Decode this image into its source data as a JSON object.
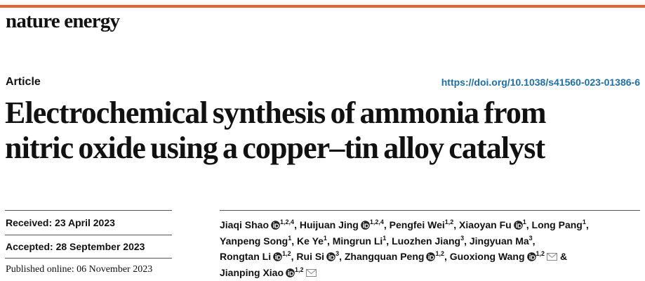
{
  "journal": "nature energy",
  "article_type": "Article",
  "doi": "https://doi.org/10.1038/s41560-023-01386-6",
  "title": [
    "Electrochemical synthesis of ammonia from",
    "nitric oxide using a copper–tin alloy catalyst"
  ],
  "dates": {
    "received": "Received: 23 April 2023",
    "accepted": "Accepted: 28 September 2023",
    "published": "Published online: 06 November 2023"
  },
  "authors": {
    "separator": ",",
    "conjunction": "&",
    "lines": [
      [
        {
          "name": "Jiaqi Shao",
          "affil": "1,2,4",
          "orcid": true,
          "corresponding": false
        },
        {
          "name": "Huijuan Jing",
          "affil": "1,2,4",
          "orcid": true,
          "corresponding": false
        },
        {
          "name": "Pengfei Wei",
          "affil": "1,2",
          "orcid": false,
          "corresponding": false
        },
        {
          "name": "Xiaoyan Fu",
          "affil": "1",
          "orcid": true,
          "corresponding": false
        },
        {
          "name": "Long Pang",
          "affil": "1",
          "orcid": false,
          "corresponding": false
        }
      ],
      [
        {
          "name": "Yanpeng Song",
          "affil": "1",
          "orcid": false,
          "corresponding": false
        },
        {
          "name": "Ke Ye",
          "affil": "1",
          "orcid": false,
          "corresponding": false
        },
        {
          "name": "Mingrun Li",
          "affil": "1",
          "orcid": false,
          "corresponding": false
        },
        {
          "name": "Luozhen Jiang",
          "affil": "3",
          "orcid": false,
          "corresponding": false
        },
        {
          "name": "Jingyuan Ma",
          "affil": "3",
          "orcid": false,
          "corresponding": false
        }
      ],
      [
        {
          "name": "Rongtan Li",
          "affil": "1,2",
          "orcid": true,
          "corresponding": false
        },
        {
          "name": "Rui Si",
          "affil": "3",
          "orcid": true,
          "corresponding": false
        },
        {
          "name": "Zhangquan Peng",
          "affil": "1,2",
          "orcid": true,
          "corresponding": false
        },
        {
          "name": "Guoxiong Wang",
          "affil": "1,2",
          "orcid": true,
          "corresponding": true
        }
      ],
      [
        {
          "name": "Jianping Xiao",
          "affil": "1,2",
          "orcid": true,
          "corresponding": true
        }
      ]
    ]
  }
}
